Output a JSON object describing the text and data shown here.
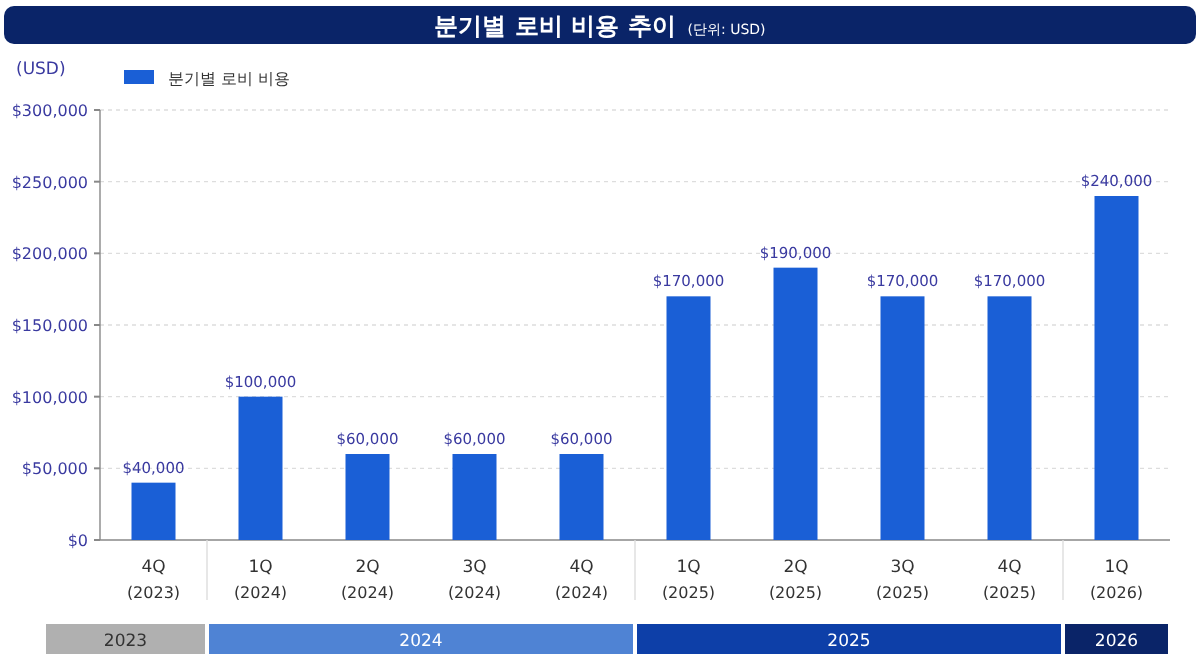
{
  "chart_data": {
    "type": "bar",
    "title": "분기별 로비 비용 추이",
    "subtitle": "(단위: USD)",
    "ylabel": "(USD)",
    "categories": [
      "4Q (2023)",
      "1Q (2024)",
      "2Q (2024)",
      "3Q (2024)",
      "4Q (2024)",
      "1Q (2025)",
      "2Q (2025)",
      "3Q (2025)",
      "4Q (2025)",
      "1Q (2026)"
    ],
    "series": [
      {
        "name": "분기별 로비 비용",
        "color": "#1a5fd6",
        "values": [
          40000,
          100000,
          60000,
          60000,
          60000,
          170000,
          190000,
          170000,
          170000,
          240000
        ],
        "value_labels": [
          "$40,000",
          "$100,000",
          "$60,000",
          "$60,000",
          "$60,000",
          "$170,000",
          "$190,000",
          "$170,000",
          "$170,000",
          "$240,000"
        ]
      }
    ],
    "ylim": [
      0,
      300000
    ],
    "yticks": [
      {
        "value": 0,
        "label": "$0"
      },
      {
        "value": 50000,
        "label": "$50,000"
      },
      {
        "value": 100000,
        "label": "$100,000"
      },
      {
        "value": 150000,
        "label": "$150,000"
      },
      {
        "value": 200000,
        "label": "$200,000"
      },
      {
        "value": 250000,
        "label": "$250,000"
      },
      {
        "value": 300000,
        "label": "$300,000"
      }
    ],
    "grid": "y",
    "legend": "top left",
    "annotations": [
      "2023",
      "2024",
      "2025",
      "2026"
    ]
  }
}
